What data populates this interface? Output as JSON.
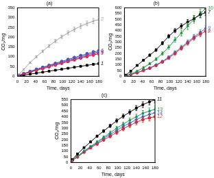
{
  "chart_data": [
    {
      "type": "line",
      "title": "(a)",
      "x_label": "Time, days",
      "y_label": "CO₂/mg",
      "x": [
        3,
        14,
        28,
        42,
        56,
        70,
        84,
        98,
        112,
        126,
        140,
        154,
        168,
        180
      ],
      "xlim": [
        0,
        180
      ],
      "xticks": [
        0,
        20,
        40,
        60,
        80,
        100,
        120,
        140,
        160,
        180
      ],
      "ylim": [
        0,
        350
      ],
      "yticks": [
        0,
        50,
        100,
        150,
        200,
        250,
        300,
        350
      ],
      "grid": false,
      "series": [
        {
          "name": "1",
          "color": "#000000",
          "marker": "square",
          "values": [
            2,
            6,
            11,
            16,
            21,
            26,
            31,
            36,
            41,
            46,
            51,
            56,
            61,
            65
          ],
          "errors": [
            1,
            1,
            1,
            2,
            2,
            2,
            2,
            3,
            3,
            3,
            3,
            4,
            4,
            4
          ]
        },
        {
          "name": "2",
          "color": "#a0a0a0",
          "marker": "cross",
          "values": [
            8,
            35,
            70,
            100,
            128,
            155,
            180,
            202,
            222,
            240,
            256,
            270,
            282,
            290
          ],
          "errors": [
            2,
            3,
            4,
            5,
            6,
            7,
            8,
            9,
            10,
            11,
            12,
            12,
            13,
            14
          ]
        },
        {
          "name": "3",
          "color": "#e8202a",
          "marker": "circle",
          "values": [
            3,
            11,
            21,
            30,
            39,
            48,
            57,
            66,
            75,
            84,
            93,
            101,
            109,
            115
          ],
          "errors": [
            1,
            1,
            2,
            2,
            3,
            3,
            4,
            4,
            5,
            5,
            6,
            6,
            7,
            7
          ]
        },
        {
          "name": "4",
          "color": "#2f6fd0",
          "marker": "triangle",
          "values": [
            4,
            13,
            24,
            34,
            44,
            54,
            63,
            72,
            82,
            91,
            100,
            109,
            118,
            125
          ],
          "errors": [
            1,
            1,
            2,
            2,
            3,
            3,
            4,
            4,
            5,
            5,
            6,
            6,
            7,
            7
          ]
        },
        {
          "name": "5",
          "color": "#d040c0",
          "marker": "diamond",
          "values": [
            4,
            12,
            22,
            32,
            41,
            51,
            60,
            69,
            78,
            87,
            96,
            105,
            113,
            120
          ],
          "errors": [
            1,
            1,
            2,
            2,
            3,
            3,
            4,
            4,
            5,
            5,
            6,
            6,
            7,
            7
          ]
        },
        {
          "name": "6",
          "color": "#5050a8",
          "marker": "circle",
          "values": [
            5,
            14,
            25,
            36,
            46,
            56,
            66,
            76,
            86,
            96,
            106,
            115,
            124,
            130
          ],
          "errors": [
            1,
            1,
            2,
            2,
            3,
            3,
            4,
            4,
            5,
            5,
            6,
            6,
            7,
            7
          ]
        }
      ]
    },
    {
      "type": "line",
      "title": "(b)",
      "x_label": "Time, days",
      "y_label": "CO₂/mg",
      "x": [
        3,
        14,
        28,
        42,
        56,
        70,
        84,
        98,
        112,
        126,
        140,
        154,
        168,
        180
      ],
      "xlim": [
        0,
        180
      ],
      "xticks": [
        0,
        20,
        40,
        60,
        80,
        100,
        120,
        140,
        160,
        180
      ],
      "ylim": [
        0,
        600
      ],
      "yticks": [
        0,
        50,
        100,
        150,
        200,
        250,
        300,
        350,
        400,
        450,
        500,
        550,
        600
      ],
      "grid": false,
      "series": [
        {
          "name": "7",
          "color": "#000000",
          "marker": "square",
          "values": [
            10,
            45,
            95,
            140,
            185,
            230,
            290,
            350,
            400,
            440,
            475,
            505,
            540,
            560
          ],
          "errors": [
            3,
            5,
            6,
            8,
            10,
            12,
            14,
            16,
            18,
            20,
            22,
            24,
            26,
            28
          ]
        },
        {
          "name": "10",
          "color": "#1a9a3a",
          "marker": "triangle",
          "values": [
            5,
            20,
            45,
            75,
            110,
            150,
            200,
            255,
            320,
            380,
            440,
            500,
            550,
            595
          ],
          "errors": [
            2,
            4,
            6,
            8,
            10,
            12,
            14,
            18,
            22,
            26,
            30,
            34,
            38,
            40
          ]
        },
        {
          "name": "8",
          "color": "#e8202a",
          "marker": "circle",
          "values": [
            5,
            15,
            30,
            50,
            70,
            95,
            125,
            160,
            200,
            245,
            290,
            335,
            370,
            395
          ],
          "errors": [
            2,
            3,
            4,
            5,
            6,
            8,
            10,
            12,
            14,
            16,
            18,
            20,
            22,
            24
          ]
        },
        {
          "name": "9",
          "color": "#2f6fd0",
          "marker": "diamond",
          "values": [
            5,
            16,
            32,
            52,
            74,
            100,
            130,
            168,
            210,
            255,
            300,
            345,
            385,
            420
          ],
          "errors": [
            2,
            3,
            4,
            5,
            6,
            8,
            10,
            12,
            14,
            16,
            18,
            20,
            22,
            24
          ]
        }
      ]
    },
    {
      "type": "line",
      "title": "(c)",
      "x_label": "Time, days",
      "y_label": "CO₂/mg",
      "x": [
        3,
        14,
        28,
        42,
        56,
        70,
        84,
        98,
        112,
        126,
        140,
        154,
        168,
        180
      ],
      "xlim": [
        0,
        180
      ],
      "xticks": [
        0,
        20,
        40,
        60,
        80,
        100,
        120,
        140,
        160,
        180
      ],
      "ylim": [
        0,
        550
      ],
      "yticks": [
        0,
        50,
        100,
        150,
        200,
        250,
        300,
        350,
        400,
        450,
        500,
        550
      ],
      "grid": false,
      "series": [
        {
          "name": "11",
          "color": "#000000",
          "marker": "square",
          "values": [
            25,
            75,
            130,
            180,
            230,
            275,
            320,
            365,
            405,
            440,
            475,
            505,
            530,
            550
          ],
          "errors": [
            3,
            5,
            6,
            8,
            10,
            12,
            14,
            16,
            18,
            20,
            22,
            24,
            26,
            28
          ]
        },
        {
          "name": "13",
          "color": "#1a9a3a",
          "marker": "triangle",
          "values": [
            20,
            55,
            100,
            140,
            180,
            220,
            260,
            300,
            335,
            370,
            400,
            430,
            450,
            465
          ],
          "errors": [
            3,
            4,
            6,
            8,
            10,
            12,
            14,
            16,
            18,
            20,
            22,
            24,
            26,
            28
          ]
        },
        {
          "name": "14",
          "color": "#2f6fd0",
          "marker": "diamond",
          "values": [
            20,
            50,
            95,
            135,
            170,
            210,
            245,
            280,
            315,
            345,
            375,
            400,
            420,
            435
          ],
          "errors": [
            3,
            4,
            6,
            8,
            10,
            12,
            14,
            16,
            18,
            20,
            22,
            24,
            26,
            28
          ]
        },
        {
          "name": "12",
          "color": "#e8202a",
          "marker": "circle",
          "values": [
            18,
            48,
            90,
            128,
            162,
            198,
            230,
            262,
            295,
            325,
            352,
            375,
            390,
            400
          ],
          "errors": [
            3,
            4,
            6,
            8,
            10,
            12,
            14,
            16,
            18,
            20,
            22,
            24,
            26,
            28
          ]
        }
      ]
    }
  ]
}
